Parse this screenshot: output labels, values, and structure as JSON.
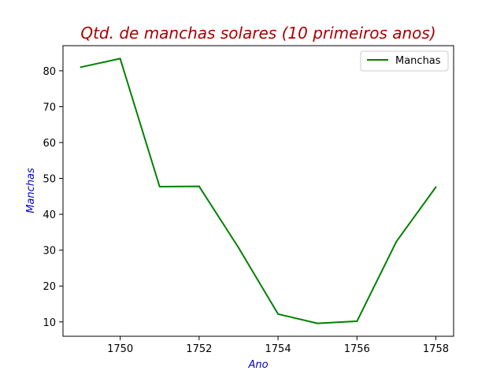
{
  "chart_data": {
    "type": "line",
    "title": "Qtd. de manchas solares (10 primeiros anos)",
    "xlabel": "Ano",
    "ylabel": "Manchas",
    "x": [
      1749,
      1750,
      1751,
      1752,
      1753,
      1754,
      1755,
      1756,
      1757,
      1758
    ],
    "series": [
      {
        "name": "Manchas",
        "color": "#008000",
        "values": [
          81.0,
          83.4,
          47.7,
          47.8,
          30.7,
          12.2,
          9.6,
          10.2,
          32.4,
          47.6
        ]
      }
    ],
    "xlim": [
      1748.55,
      1758.45
    ],
    "ylim": [
      6.0,
      87.0
    ],
    "xticks": [
      "1750",
      "1752",
      "1754",
      "1756",
      "1758"
    ],
    "yticks": [
      "10",
      "20",
      "30",
      "40",
      "50",
      "60",
      "70",
      "80"
    ],
    "grid": false,
    "legend_position": "top-right",
    "colors": {
      "title": "#aa0000",
      "axis_labels": "#0000cc",
      "line": "#008000"
    }
  }
}
